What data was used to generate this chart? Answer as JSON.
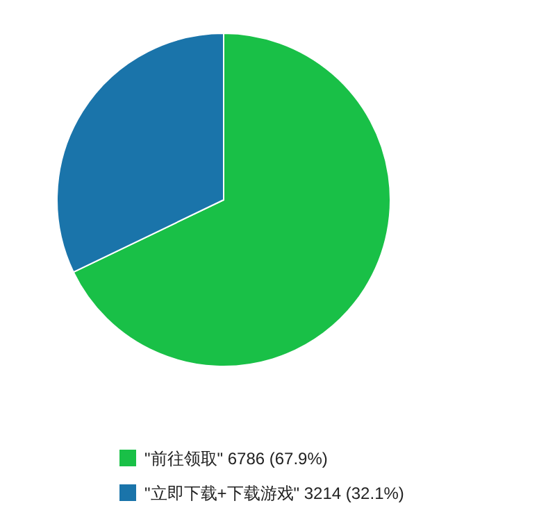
{
  "chart_data": {
    "type": "pie",
    "categories": [
      "\"前往领取\"",
      "\"立即下载+下载游戏\""
    ],
    "values": [
      6786,
      3214
    ],
    "value_labels": [
      "6786 (67.9%)",
      "3214 (32.1%)"
    ],
    "colors": [
      "#19c047",
      "#1a74aa"
    ],
    "legend": "bottom"
  }
}
